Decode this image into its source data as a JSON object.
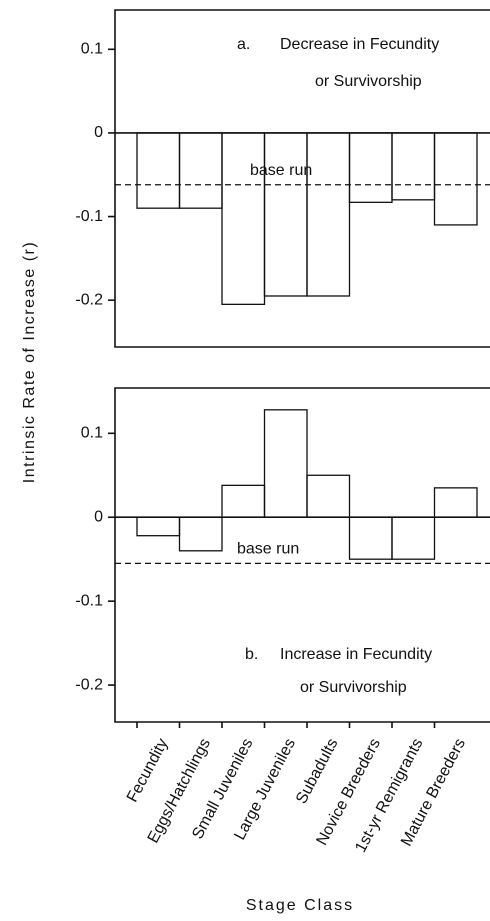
{
  "chart_data": [
    {
      "type": "bar",
      "ylabel": "Intrinsic Rate of Increase (r)",
      "annotation": {
        "label": "a.",
        "lines": [
          "Decrease in Fecundity",
          "or Survivorship"
        ]
      },
      "values": [
        -0.09,
        -0.09,
        -0.205,
        -0.195,
        -0.195,
        -0.083,
        -0.08,
        -0.11
      ],
      "base_run": {
        "value": -0.062,
        "label": "base run"
      },
      "ylim": [
        -0.256,
        0.147
      ],
      "yticks": [
        0.1,
        0,
        -0.1,
        -0.2
      ]
    },
    {
      "type": "bar",
      "xlabel": "Stage Class",
      "annotation": {
        "label": "b.",
        "lines": [
          "Increase in Fecundity",
          "or Survivorship"
        ]
      },
      "categories": [
        "Fecundity",
        "Eggs/Hatchlings",
        "Small Juveniles",
        "Large Juveniles",
        "Subadults",
        "Novice Breeders",
        "1st-yr Remigrants",
        "Mature Breeders"
      ],
      "values": [
        -0.022,
        -0.04,
        0.038,
        0.128,
        0.05,
        -0.05,
        -0.05,
        0.035
      ],
      "base_run": {
        "value": -0.055,
        "label": "base run"
      },
      "ylim": [
        -0.244,
        0.154
      ],
      "yticks": [
        0.1,
        0,
        -0.1,
        -0.2
      ]
    }
  ]
}
